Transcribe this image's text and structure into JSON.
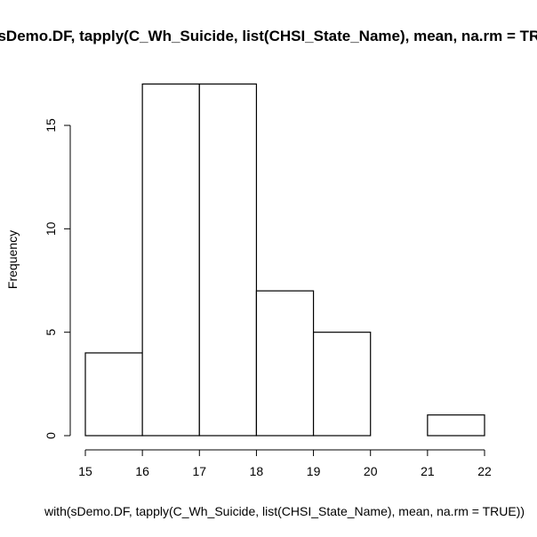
{
  "chart_data": {
    "type": "bar",
    "title": "with(sDemo.DF, tapply(C_Wh_Suicide, list(CHSI_State_Name), mean, na.rm = TRUE))",
    "xlabel": "with(sDemo.DF, tapply(C_Wh_Suicide, list(CHSI_State_Name), mean, na.rm = TRUE))",
    "ylabel": "Frequency",
    "bins": [
      {
        "from": 15,
        "to": 16,
        "count": 4
      },
      {
        "from": 16,
        "to": 17,
        "count": 17
      },
      {
        "from": 17,
        "to": 18,
        "count": 17
      },
      {
        "from": 18,
        "to": 19,
        "count": 7
      },
      {
        "from": 19,
        "to": 20,
        "count": 5
      },
      {
        "from": 20,
        "to": 21,
        "count": 0
      },
      {
        "from": 21,
        "to": 22,
        "count": 1
      }
    ],
    "xlim": [
      15,
      22
    ],
    "ylim": [
      0,
      17
    ],
    "xticks": [
      15,
      16,
      17,
      18,
      19,
      20,
      21,
      22
    ],
    "yticks": [
      0,
      5,
      10,
      15
    ],
    "grid": false
  }
}
